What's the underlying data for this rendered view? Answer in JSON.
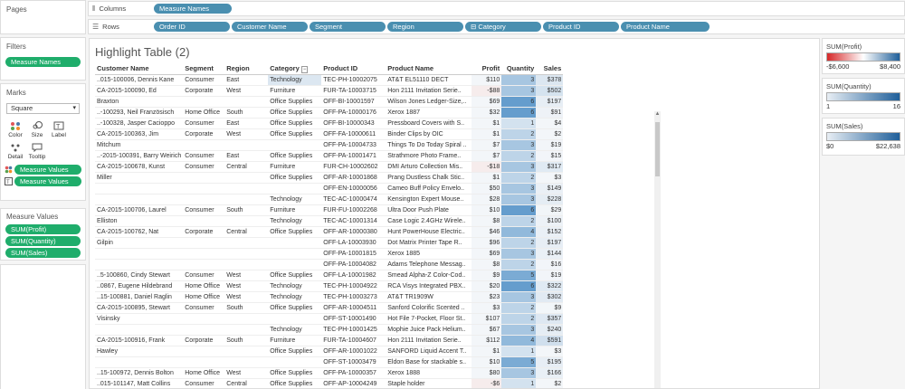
{
  "left": {
    "pages_title": "Pages",
    "filters_title": "Filters",
    "filters": [
      "Measure Names"
    ],
    "marks_title": "Marks",
    "mark_type": "Square",
    "mark_buttons": [
      "Color",
      "Size",
      "Label",
      "Detail",
      "Tooltip"
    ],
    "marks_fields": [
      "Measure Values",
      "Measure Values"
    ],
    "measure_values_title": "Measure Values",
    "measure_values": [
      "SUM(Profit)",
      "SUM(Quantity)",
      "SUM(Sales)"
    ]
  },
  "shelves": {
    "columns_label": "Columns",
    "columns": [
      "Measure Names"
    ],
    "rows_label": "Rows",
    "rows": [
      "Order ID",
      "Customer Name",
      "Segment",
      "Region",
      "⊟ Category",
      "Product ID",
      "Product Name"
    ]
  },
  "view": {
    "title": "Highlight Table (2)",
    "headers": [
      "Customer Name",
      "Segment",
      "Region",
      "Category",
      "Product ID",
      "Product Name",
      "Profit",
      "Quantity",
      "Sales"
    ],
    "rows": [
      [
        "..015-100006, Dennis Kane",
        "Consumer",
        "East",
        "Technology",
        "TEC-PH-10002075",
        "AT&T EL51110 DECT",
        "$110",
        "3",
        "$378"
      ],
      [
        "CA-2015-100090, Ed",
        "Corporate",
        "West",
        "Furniture",
        "FUR-TA-10003715",
        "Hon 2111 Invitation Serie..",
        "-$88",
        "3",
        "$502"
      ],
      [
        "Braxton",
        "",
        "",
        "Office Supplies",
        "OFF-BI-10001597",
        "Wilson Jones Ledger-Size,..",
        "$69",
        "6",
        "$197"
      ],
      [
        "..-100293, Neil Französisch",
        "Home Office",
        "South",
        "Office Supplies",
        "OFF-PA-10000176",
        "Xerox 1887",
        "$32",
        "6",
        "$91"
      ],
      [
        "..-100328, Jasper Cacioppo",
        "Consumer",
        "East",
        "Office Supplies",
        "OFF-BI-10000343",
        "Pressboard Covers with S..",
        "$1",
        "1",
        "$4"
      ],
      [
        "CA-2015-100363, Jim",
        "Corporate",
        "West",
        "Office Supplies",
        "OFF-FA-10000611",
        "Binder Clips by OIC",
        "$1",
        "2",
        "$2"
      ],
      [
        "Mitchum",
        "",
        "",
        "",
        "OFF-PA-10004733",
        "Things To Do Today Spiral ..",
        "$7",
        "3",
        "$19"
      ],
      [
        "..-2015-100391, Barry Weirich",
        "Consumer",
        "East",
        "Office Supplies",
        "OFF-PA-10001471",
        "Strathmore Photo Frame..",
        "$7",
        "2",
        "$15"
      ],
      [
        "CA-2015-100678, Kunst",
        "Consumer",
        "Central",
        "Furniture",
        "FUR-CH-10002602",
        "DMI Arturo Collection Mis..",
        "-$18",
        "3",
        "$317"
      ],
      [
        "Miller",
        "",
        "",
        "Office Supplies",
        "OFF-AR-10001868",
        "Prang Dustless Chalk Stic..",
        "$1",
        "2",
        "$3"
      ],
      [
        "",
        "",
        "",
        "",
        "OFF-EN-10000056",
        "Cameo Buff Policy Envelo..",
        "$50",
        "3",
        "$149"
      ],
      [
        "",
        "",
        "",
        "Technology",
        "TEC-AC-10000474",
        "Kensington Expert Mouse..",
        "$28",
        "3",
        "$228"
      ],
      [
        "CA-2015-100706, Laurel",
        "Consumer",
        "South",
        "Furniture",
        "FUR-FU-10002268",
        "Ultra Door Push Plate",
        "$10",
        "6",
        "$29"
      ],
      [
        "Elliston",
        "",
        "",
        "Technology",
        "TEC-AC-10001314",
        "Case Logic 2.4GHz Wirele..",
        "$8",
        "2",
        "$100"
      ],
      [
        "CA-2015-100762, Nat",
        "Corporate",
        "Central",
        "Office Supplies",
        "OFF-AR-10000380",
        "Hunt PowerHouse Electric..",
        "$46",
        "4",
        "$152"
      ],
      [
        "Gilpin",
        "",
        "",
        "",
        "OFF-LA-10003930",
        "Dot Matrix Printer Tape R..",
        "$96",
        "2",
        "$197"
      ],
      [
        "",
        "",
        "",
        "",
        "OFF-PA-10001815",
        "Xerox 1885",
        "$69",
        "3",
        "$144"
      ],
      [
        "",
        "",
        "",
        "",
        "OFF-PA-10004082",
        "Adams Telephone Messag..",
        "$8",
        "2",
        "$16"
      ],
      [
        "..5-100860, Cindy Stewart",
        "Consumer",
        "West",
        "Office Supplies",
        "OFF-LA-10001982",
        "Smead Alpha-Z Color-Cod..",
        "$9",
        "5",
        "$19"
      ],
      [
        "..0867, Eugene Hildebrand",
        "Home Office",
        "West",
        "Technology",
        "TEC-PH-10004922",
        "RCA Visys Integrated PBX..",
        "$20",
        "6",
        "$322"
      ],
      [
        "..15-100881, Daniel Raglin",
        "Home Office",
        "West",
        "Technology",
        "TEC-PH-10003273",
        "AT&T TR1909W",
        "$23",
        "3",
        "$302"
      ],
      [
        "CA-2015-100895, Stewart",
        "Consumer",
        "South",
        "Office Supplies",
        "OFF-AR-10004511",
        "Sanford Colorific Scented ..",
        "$3",
        "2",
        "$9"
      ],
      [
        "Visinsky",
        "",
        "",
        "",
        "OFF-ST-10001490",
        "Hot File 7-Pocket, Floor St..",
        "$107",
        "2",
        "$357"
      ],
      [
        "",
        "",
        "",
        "Technology",
        "TEC-PH-10001425",
        "Mophie Juice Pack Helium..",
        "$67",
        "3",
        "$240"
      ],
      [
        "CA-2015-100916, Frank",
        "Corporate",
        "South",
        "Furniture",
        "FUR-TA-10004607",
        "Hon 2111 Invitation Serie..",
        "$112",
        "4",
        "$591"
      ],
      [
        "Hawley",
        "",
        "",
        "Office Supplies",
        "OFF-AR-10001022",
        "SANFORD Liquid Accent T..",
        "$1",
        "1",
        "$3"
      ],
      [
        "",
        "",
        "",
        "",
        "OFF-ST-10003479",
        "Eldon Base for stackable s..",
        "$10",
        "5",
        "$195"
      ],
      [
        "..15-100972, Dennis Bolton",
        "Home Office",
        "West",
        "Office Supplies",
        "OFF-PA-10000357",
        "Xerox 1888",
        "$80",
        "3",
        "$166"
      ],
      [
        "..015-101147, Matt Collins",
        "Consumer",
        "Central",
        "Office Supplies",
        "OFF-AP-10004249",
        "Staple holder",
        "-$6",
        "1",
        "$2"
      ],
      [
        "..15-101175, Dario Medina",
        "Corporate",
        "West",
        "Office Supplies",
        "OFF-ST-10004429",
        "Acco Perma 3000 Stackin..",
        "-$1",
        "6",
        "$101"
      ]
    ]
  },
  "legends": [
    {
      "title": "SUM(Profit)",
      "min": "-$6,600",
      "max": "$8,400",
      "colors": [
        "#d62728",
        "#ffffff",
        "#1f5f9a"
      ]
    },
    {
      "title": "SUM(Quantity)",
      "min": "1",
      "max": "16",
      "colors": [
        "#e8eef4",
        "#1f5f9a"
      ]
    },
    {
      "title": "SUM(Sales)",
      "min": "$0",
      "max": "$22,638",
      "colors": [
        "#e8eef4",
        "#1f5f9a"
      ]
    }
  ],
  "colors": {
    "measure_pill": "#1fad6b",
    "dimension_pill": "#4a8fb0",
    "heat_base": "#dce8f2",
    "heat_high": "#5e97c8"
  }
}
